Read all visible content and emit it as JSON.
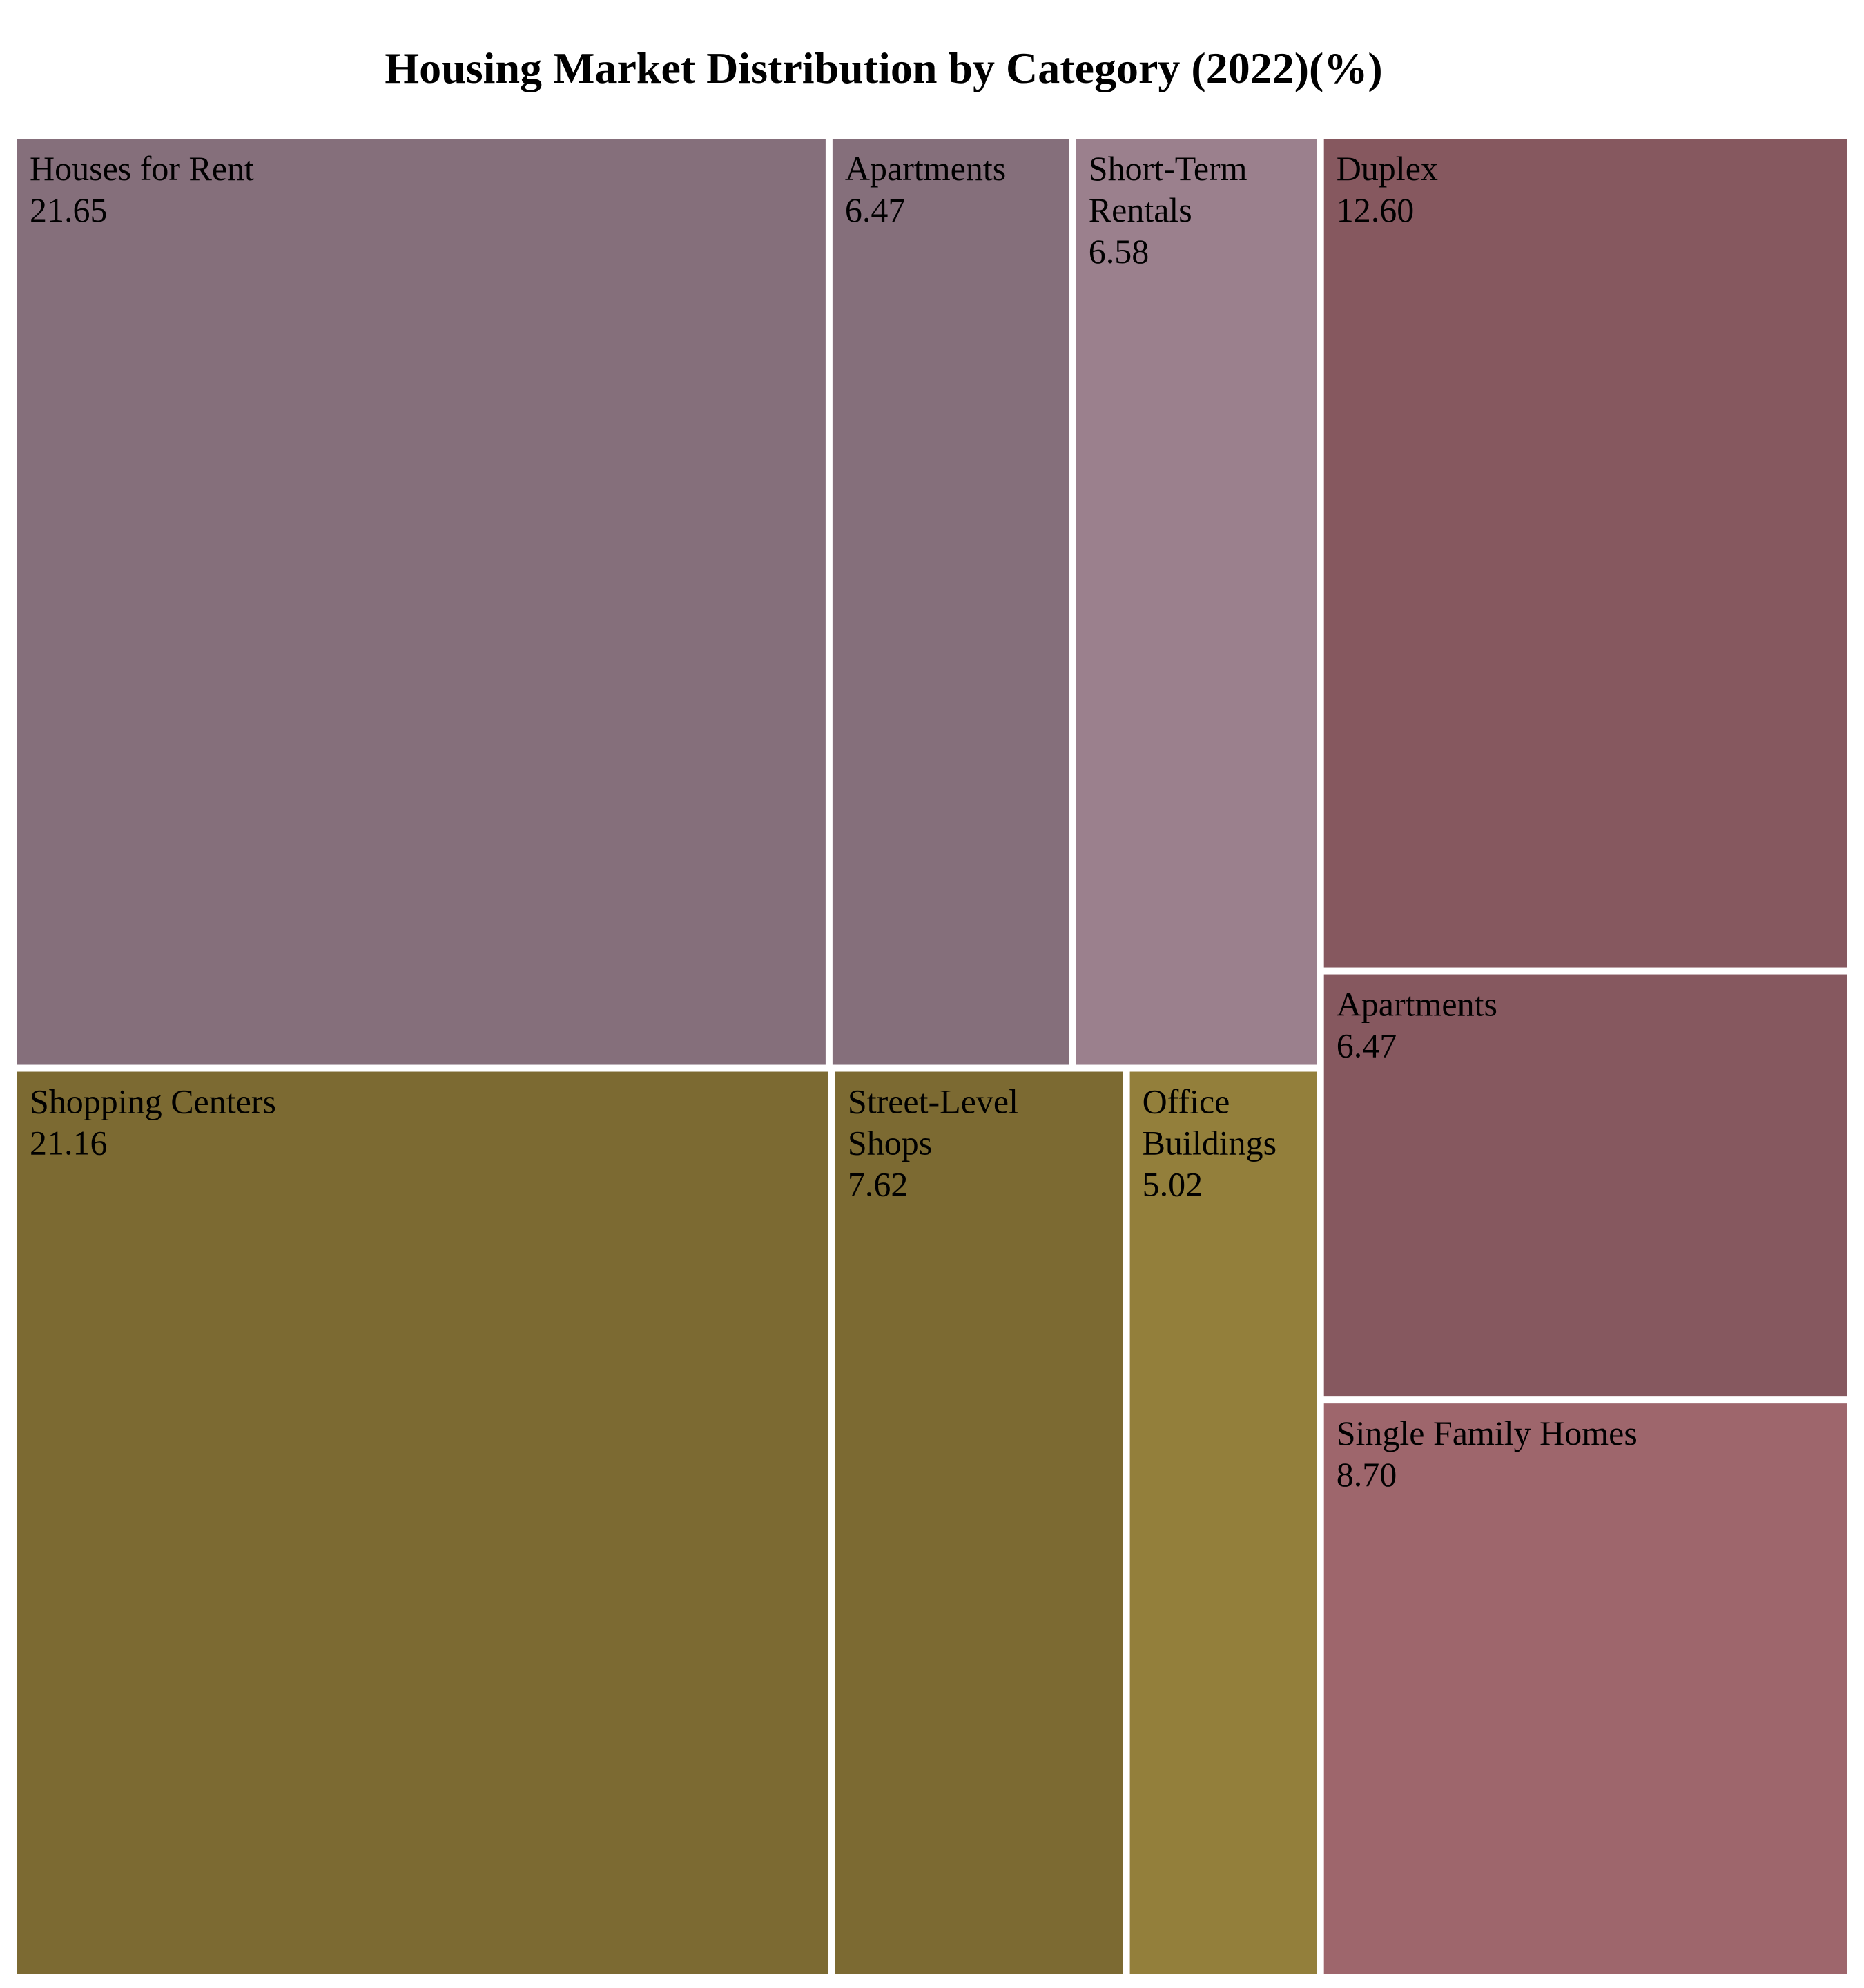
{
  "chart_data": {
    "type": "treemap",
    "title": "Housing Market Distribution by Category (2022)(%)",
    "groups": [
      {
        "color": "#856f7b",
        "items": [
          {
            "label": "Houses for Rent",
            "value": 21.65,
            "color": "#856f7b"
          },
          {
            "label": "Apartments",
            "value": 6.47,
            "color": "#856f7b"
          },
          {
            "label": "Short-Term Rentals",
            "value": 6.58,
            "color": "#9b808d"
          }
        ]
      },
      {
        "color": "#7c6a32",
        "items": [
          {
            "label": "Shopping Centers",
            "value": 21.16,
            "color": "#7c6a32"
          },
          {
            "label": "Street-Level Shops",
            "value": 7.62,
            "color": "#7c6a32"
          },
          {
            "label": "Office Buildings",
            "value": 5.02,
            "color": "#937f3b"
          }
        ]
      },
      {
        "color": "#86585f",
        "items": [
          {
            "label": "Duplex",
            "value": 12.6,
            "color": "#86585f"
          },
          {
            "label": "Apartments",
            "value": 6.47,
            "color": "#86585f"
          },
          {
            "label": "Single Family Homes",
            "value": 8.7,
            "color": "#9e666c"
          }
        ]
      }
    ]
  }
}
